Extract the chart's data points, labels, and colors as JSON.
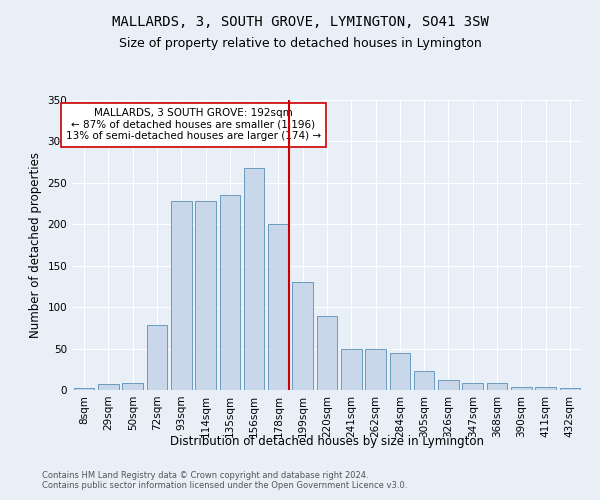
{
  "title": "MALLARDS, 3, SOUTH GROVE, LYMINGTON, SO41 3SW",
  "subtitle": "Size of property relative to detached houses in Lymington",
  "xlabel": "Distribution of detached houses by size in Lymington",
  "ylabel": "Number of detached properties",
  "categories": [
    "8sqm",
    "29sqm",
    "50sqm",
    "72sqm",
    "93sqm",
    "114sqm",
    "135sqm",
    "156sqm",
    "178sqm",
    "199sqm",
    "220sqm",
    "241sqm",
    "262sqm",
    "284sqm",
    "305sqm",
    "326sqm",
    "347sqm",
    "368sqm",
    "390sqm",
    "411sqm",
    "432sqm"
  ],
  "values": [
    2,
    7,
    8,
    78,
    228,
    228,
    235,
    268,
    200,
    130,
    89,
    50,
    50,
    45,
    23,
    12,
    9,
    8,
    4,
    4,
    2
  ],
  "bar_color": "#c8d8ea",
  "bar_edge_color": "#6a9abf",
  "marker_index": 8,
  "marker_color": "#cc0000",
  "annotation_text": "MALLARDS, 3 SOUTH GROVE: 192sqm\n← 87% of detached houses are smaller (1,196)\n13% of semi-detached houses are larger (174) →",
  "annotation_box_color": "#ffffff",
  "annotation_box_edge_color": "#cc0000",
  "ylim": [
    0,
    350
  ],
  "yticks": [
    0,
    50,
    100,
    150,
    200,
    250,
    300,
    350
  ],
  "footer_text": "Contains HM Land Registry data © Crown copyright and database right 2024.\nContains public sector information licensed under the Open Government Licence v3.0.",
  "bg_color": "#e8eff7",
  "axes_bg_color": "#e8eff7",
  "title_fontsize": 10,
  "subtitle_fontsize": 9,
  "axis_label_fontsize": 8.5,
  "tick_fontsize": 7.5,
  "annotation_fontsize": 7.5,
  "footer_fontsize": 6.0
}
